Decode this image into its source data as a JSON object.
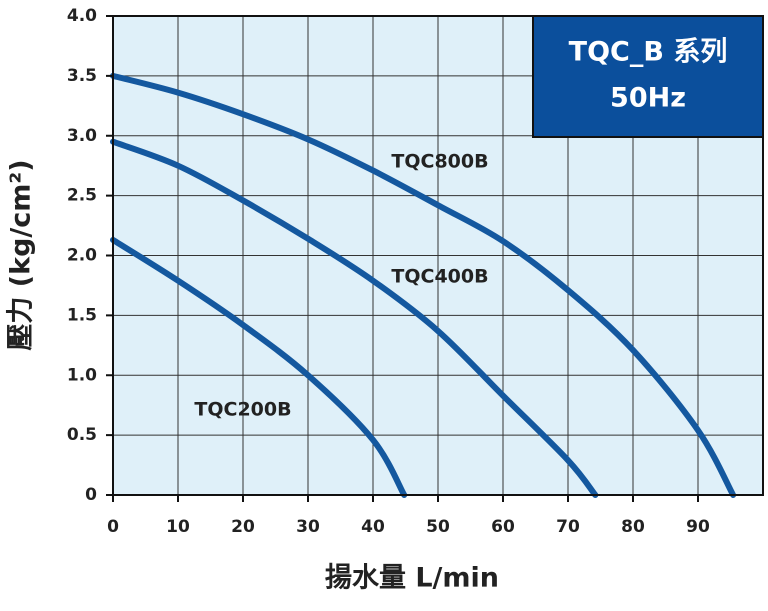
{
  "chart_data": {
    "type": "line",
    "title": "TQC_B 系列",
    "subtitle": "50Hz",
    "xlabel": "揚水量 L/min",
    "ylabel": "壓力 (kg/cm²)",
    "xlim": [
      0,
      100
    ],
    "ylim": [
      0,
      4
    ],
    "xticks": [
      0,
      10,
      20,
      30,
      40,
      50,
      60,
      70,
      80,
      90
    ],
    "yticks": [
      0,
      0.5,
      {
        "value": 1,
        "label": "1.0"
      },
      1.5,
      {
        "value": 2,
        "label": "2.0"
      },
      2.5,
      {
        "value": 3,
        "label": "3.0"
      },
      3.5,
      {
        "value": 4,
        "label": "4.0"
      }
    ],
    "grid": true,
    "series": [
      {
        "name": "TQC800B",
        "color": "#14589f",
        "x": [
          0,
          10,
          20,
          30,
          40,
          50,
          60,
          70,
          80,
          90,
          95.4
        ],
        "values": [
          3.5,
          3.36,
          3.18,
          2.97,
          2.71,
          2.42,
          2.12,
          1.71,
          1.21,
          0.54,
          0
        ]
      },
      {
        "name": "TQC400B",
        "color": "#14589f",
        "x": [
          0,
          10,
          20,
          30,
          40,
          50,
          60,
          70,
          74.2
        ],
        "values": [
          2.95,
          2.75,
          2.46,
          2.14,
          1.79,
          1.37,
          0.83,
          0.29,
          0
        ]
      },
      {
        "name": "TQC200B",
        "color": "#14589f",
        "x": [
          0,
          10,
          20,
          30,
          40,
          44.8
        ],
        "values": [
          2.13,
          1.79,
          1.42,
          1.0,
          0.46,
          0
        ]
      }
    ]
  }
}
